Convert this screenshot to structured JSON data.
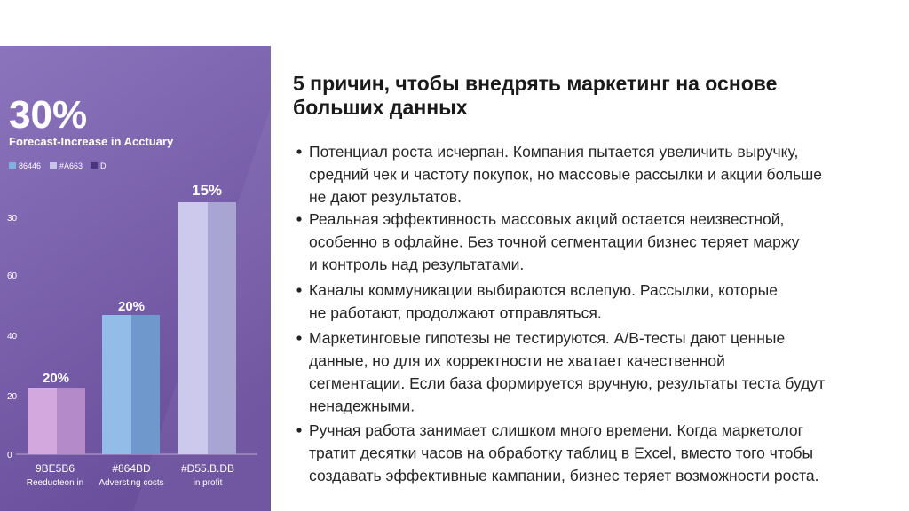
{
  "figure": {
    "headline": "30%",
    "subtitle": "Forecast-Increase in Acctuary",
    "legend": [
      "86446",
      "#A663",
      "D"
    ],
    "axis_labels": [
      "30",
      "60",
      "40",
      "20",
      "0"
    ],
    "bars": [
      {
        "label": "20%",
        "code": "9BE5B6",
        "caption": "Reeducteon in"
      },
      {
        "label": "20%",
        "code": "#864BD",
        "caption": "Adversting costs"
      },
      {
        "label": "15%",
        "code": "#D55.B.DB",
        "caption": "in profit"
      }
    ]
  },
  "slide": {
    "title": [
      "5 причин, чтобы внедрять маркетинг на основе",
      "больших данных"
    ],
    "items": [
      {
        "lines": [
          "Потенциал роста исчерпан. Компания пытается увеличить выручку,",
          "средний чек и частоту покупок, но массовые рассылки и акции больше",
          "не дают результатов."
        ]
      },
      {
        "lines": [
          "Реальная эффективность массовых акций остается неизвестной,",
          "особенно в офлайне. Без точной сегментации бизнес теряет маржу",
          "и контроль над результатами."
        ]
      },
      {
        "lines": [
          "Каналы коммуникации выбираются вслепую. Рассылки, которые",
          "не работают, продолжают отправляться."
        ]
      },
      {
        "lines": [
          "Маркетинговые гипотезы не тестируются. A/B-тесты дают ценные",
          "данные, но для их корректности не хватает качественной",
          "сегментации. Если база формируется вручную, результаты теста будут",
          "ненадежными."
        ]
      },
      {
        "lines": [
          "Ручная работа занимает слишком много времени. Когда маркетолог",
          "тратит десятки часов на обработку таблиц в Excel, вместо того чтобы",
          "создавать эффективные кампании, бизнес теряет возможности роста."
        ]
      }
    ]
  }
}
